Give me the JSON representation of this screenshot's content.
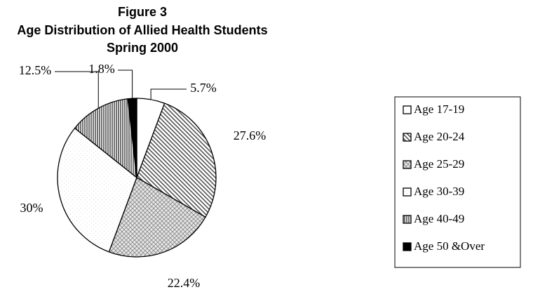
{
  "chart_data": {
    "type": "pie",
    "title": "Figure 3",
    "subtitle": "Age Distribution of Allied Health Students",
    "subtitle2": "Spring 2000",
    "categories": [
      "Age 17-19",
      "Age 20-24",
      "Age 25-29",
      "Age 30-39",
      "Age 40-49",
      "Age 50 &Over"
    ],
    "values": [
      5.7,
      27.6,
      22.4,
      30,
      12.5,
      1.8
    ],
    "value_labels": [
      "5.7%",
      "27.6%",
      "22.4%",
      "30%",
      "12.5%",
      "1.8%"
    ],
    "colors": [
      "#ffffff",
      "#555555",
      "#888888",
      "#dddddd",
      "#444444",
      "#000000"
    ],
    "legend": "right"
  }
}
